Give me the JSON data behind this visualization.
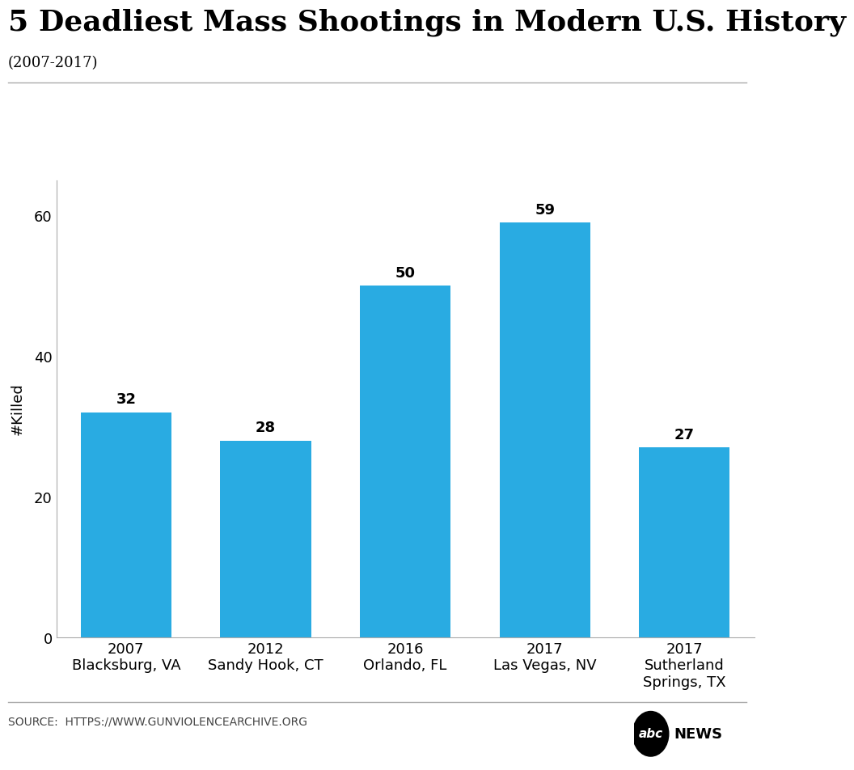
{
  "title": "5 Deadliest Mass Shootings in Modern U.S. History",
  "subtitle": "(2007-2017)",
  "categories": [
    "2007\nBlacksburg, VA",
    "2012\nSandy Hook, CT",
    "2016\nOrlando, FL",
    "2017\nLas Vegas, NV",
    "2017\nSutherland\nSprings, TX"
  ],
  "values": [
    32,
    28,
    50,
    59,
    27
  ],
  "bar_color": "#29ABE2",
  "ylabel": "#Killed",
  "ylim": [
    0,
    65
  ],
  "yticks": [
    0,
    20,
    40,
    60
  ],
  "source_text": "SOURCE:  HTTPS://WWW.GUNVIOLENCEARCHIVE.ORG",
  "background_color": "#ffffff",
  "title_fontsize": 26,
  "subtitle_fontsize": 13,
  "ylabel_fontsize": 13,
  "tick_fontsize": 13,
  "value_label_fontsize": 13,
  "source_fontsize": 10,
  "news_fontsize": 16
}
